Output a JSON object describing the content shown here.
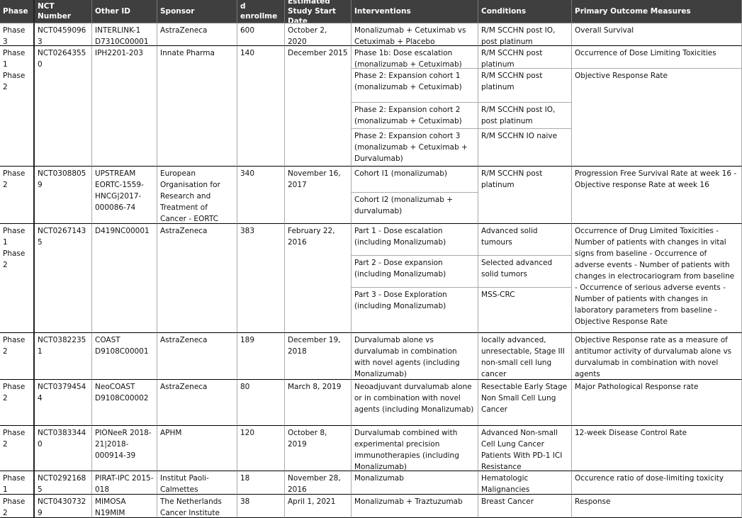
{
  "table": {
    "header": [
      "Phase",
      "NCT Number",
      "Other ID",
      "Sponsor",
      "Estimated enrollment",
      "Estimated Study Start Date",
      "Interventions",
      "Conditions",
      "Primary Outcome Measures"
    ],
    "rows": [
      {
        "phase": "Phase 3",
        "nct": "NCT04590963",
        "other_id": "INTERLINK-1 D7310C00001",
        "sponsor": "AstraZeneca",
        "enrollment": 600,
        "start_date": "October 2, 2020",
        "interventions": [
          "Monalizumab + Cetuximab vs Cetuximab + Placebo"
        ],
        "conditions": [
          "R/M SCCHN post IO, post platinum"
        ],
        "outcomes": [
          "Overall Survival"
        ]
      },
      {
        "phase": "Phase 1 Phase 2",
        "nct": "NCT02643550",
        "other_id": "IPH2201-203",
        "sponsor": "Innate Pharma",
        "enrollment": 140,
        "start_date": "December 2015",
        "interventions": [
          "Phase 1b: Dose escalation (monalizumab + Cetuximab)",
          "Phase 2: Expansion cohort 1 (monalizumab + Cetuximab)",
          "Phase 2: Expansion cohort 2 (monalizumab + Cetuximab)",
          "Phase 2: Expansion cohort 3 (monalizumab + Cetuximab + Durvalumab)"
        ],
        "conditions": [
          "R/M SCCHN post platinum",
          "R/M SCCHN post platinum",
          "R/M SCCHN post IO, post platinum",
          "R/M SCCHN IO naive"
        ],
        "outcomes": [
          "Occurrence of Dose Limiting Toxicities",
          "Objective Response Rate"
        ]
      },
      {
        "phase": "Phase 2",
        "nct": "NCT03088059",
        "other_id": "UPSTREAM EORTC-1559-HNCG|2017-000086-74",
        "sponsor": "European Organisation for Research and Treatment of Cancer - EORTC",
        "enrollment": 340,
        "start_date": "November 16, 2017",
        "interventions": [
          "Cohort I1 (monalizumab)",
          "Cohort I2 (monalizumab + durvalumab)"
        ],
        "conditions": [
          "R/M SCCHN post platinum"
        ],
        "outcomes": [
          "Progression Free Survival Rate at week 16 - Objective response Rate at week 16"
        ]
      },
      {
        "phase": "Phase 1 Phase 2",
        "nct": "NCT02671435",
        "other_id": "D419NC00001",
        "sponsor": "AstraZeneca",
        "enrollment": 383,
        "start_date": "February 22, 2016",
        "interventions": [
          "Part 1 - Dose escalation (including Monalizumab)",
          "Part 2 - Dose expansion (including Monalizumab)",
          "Part 3 - Dose Exploration (including Monalizumab)"
        ],
        "conditions": [
          "Advanced solid tumours",
          "Selected advanced solid tumors",
          "MSS-CRC"
        ],
        "outcomes": [
          "Occurrence of Drug Limited Toxicities - Number of patients with changes in vital signs from baseline - Occurrence of adverse events - Number of patients with changes in electrocariogram from baseline - Occurrence of serious adverse events - Number of patients with changes in laboratory parameters from baseline - Objective Response Rate"
        ]
      },
      {
        "phase": "Phase 2",
        "nct": "NCT03822351",
        "other_id": "COAST D9108C00001",
        "sponsor": "AstraZeneca",
        "enrollment": 189,
        "start_date": "December 19, 2018",
        "interventions": [
          "Durvalumab alone vs durvalumab in combination with novel agents (including Monalizumab)"
        ],
        "conditions": [
          "locally advanced, unresectable, Stage III non-small cell lung cancer"
        ],
        "outcomes": [
          "Objective Response rate as a measure of antitumor activity of durvalumab alone vs durvalumab in combination with novel agents"
        ]
      },
      {
        "phase": "Phase 2",
        "nct": "NCT03794544",
        "other_id": "NeoCOAST D9108C00002",
        "sponsor": "AstraZeneca",
        "enrollment": 80,
        "start_date": "March 8, 2019",
        "interventions": [
          "Neoadjuvant durvalumab alone or in combination with novel agents (including Monalizumab)"
        ],
        "conditions": [
          "Resectable Early Stage Non Small Cell Lung Cancer"
        ],
        "outcomes": [
          "Major Pathological Response rate"
        ]
      },
      {
        "phase": "Phase 2",
        "nct": "NCT03833440",
        "other_id": "PIONeeR 2018-21|2018-000914-39",
        "sponsor": "APHM",
        "enrollment": 120,
        "start_date": "October 8, 2019",
        "interventions": [
          "Durvalumab combined with experimental precision immunotherapies (including Monalizumab)"
        ],
        "conditions": [
          "Advanced Non-small Cell Lung Cancer Patients With PD-1 ICI Resistance"
        ],
        "outcomes": [
          "12-week Disease Control Rate"
        ]
      },
      {
        "phase": "Phase 1",
        "nct": "NCT02921685",
        "other_id": "PIRAT-IPC 2015-018",
        "sponsor": "Institut Paoli-Calmettes",
        "enrollment": 18,
        "start_date": "November 28, 2016",
        "interventions": [
          "Monalizumab"
        ],
        "conditions": [
          "Hematologic Malignancies"
        ],
        "outcomes": [
          "Occurence ratio of dose-limiting toxicity"
        ]
      },
      {
        "phase": "Phase 2",
        "nct": "NCT04307329",
        "other_id": "MIMOSA N19MIM",
        "sponsor": "The Netherlands Cancer Institute",
        "enrollment": 38,
        "start_date": "April 1, 2021",
        "interventions": [
          "Monalizumab + Traztuzumab"
        ],
        "conditions": [
          "Breast Cancer"
        ],
        "outcomes": [
          "Response"
        ]
      }
    ]
  }
}
